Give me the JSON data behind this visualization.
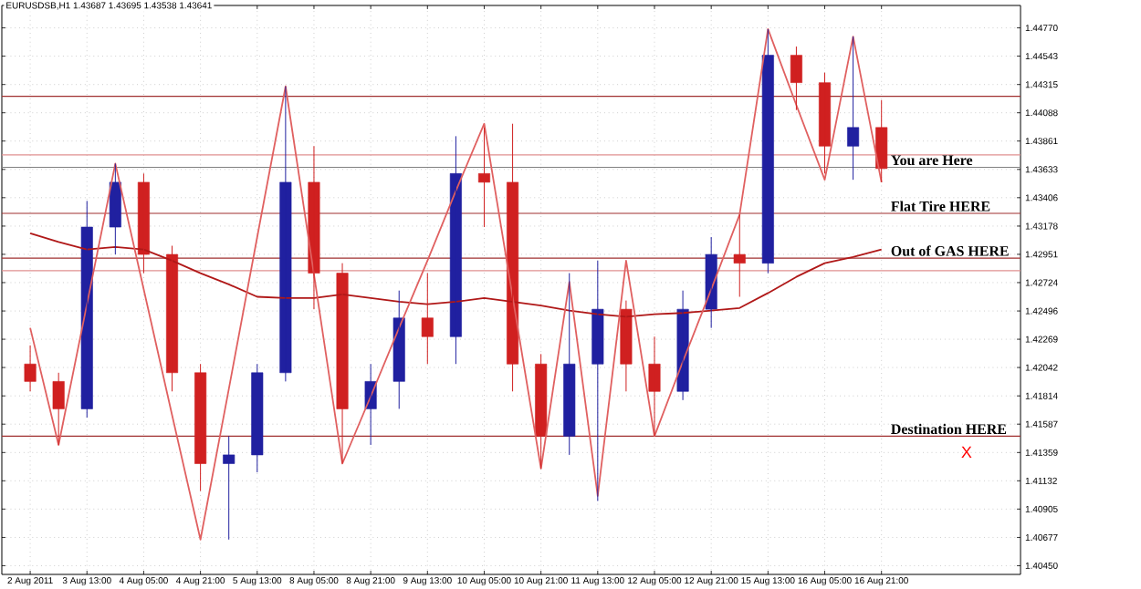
{
  "chart_data": {
    "type": "candlestick",
    "title": "EURUSDSB,H1  1.43687 1.43695 1.43538 1.43641",
    "categories": [
      "2 Aug 2011",
      null,
      "3 Aug 13:00",
      null,
      "4 Aug 05:00",
      null,
      "4 Aug 21:00",
      null,
      "5 Aug 13:00",
      null,
      "8 Aug 05:00",
      null,
      "8 Aug 21:00",
      null,
      "9 Aug 13:00",
      null,
      "10 Aug 05:00",
      null,
      "10 Aug 21:00",
      null,
      "11 Aug 13:00",
      null,
      "12 Aug 05:00",
      null,
      "12 Aug 21:00",
      null,
      "15 Aug 13:00",
      null,
      "16 Aug 05:00",
      null,
      "16 Aug 21:00"
    ],
    "ohlc": [
      [
        1.4207,
        1.4222,
        1.4185,
        1.4193
      ],
      [
        1.4193,
        1.42,
        1.4142,
        1.4171
      ],
      [
        1.4171,
        1.4338,
        1.4164,
        1.4317
      ],
      [
        1.4317,
        1.4368,
        1.4295,
        1.4353
      ],
      [
        1.4353,
        1.436,
        1.428,
        1.4295
      ],
      [
        1.4295,
        1.4302,
        1.4185,
        1.42
      ],
      [
        1.42,
        1.4207,
        1.4105,
        1.4127
      ],
      [
        1.4127,
        1.4149,
        1.4066,
        1.4134
      ],
      [
        1.4134,
        1.4207,
        1.412,
        1.42
      ],
      [
        1.42,
        1.443,
        1.4193,
        1.4353
      ],
      [
        1.4353,
        1.4382,
        1.4251,
        1.428
      ],
      [
        1.428,
        1.4288,
        1.4127,
        1.4171
      ],
      [
        1.4171,
        1.4207,
        1.4142,
        1.4193
      ],
      [
        1.4193,
        1.4266,
        1.4171,
        1.4244
      ],
      [
        1.4244,
        1.428,
        1.4207,
        1.4229
      ],
      [
        1.4229,
        1.439,
        1.4207,
        1.436
      ],
      [
        1.436,
        1.4397,
        1.4317,
        1.4353
      ],
      [
        1.4353,
        1.44,
        1.4185,
        1.4207
      ],
      [
        1.4207,
        1.4215,
        1.4123,
        1.4149
      ],
      [
        1.4149,
        1.428,
        1.4134,
        1.4207
      ],
      [
        1.4207,
        1.429,
        1.4097,
        1.4251
      ],
      [
        1.4251,
        1.4258,
        1.4185,
        1.4207
      ],
      [
        1.4207,
        1.4229,
        1.4149,
        1.4185
      ],
      [
        1.4185,
        1.4266,
        1.4178,
        1.4251
      ],
      [
        1.4251,
        1.4309,
        1.4236,
        1.4295
      ],
      [
        1.4295,
        1.4327,
        1.4261,
        1.4288
      ],
      [
        1.4288,
        1.4476,
        1.428,
        1.4455
      ],
      [
        1.4455,
        1.4462,
        1.4411,
        1.4433
      ],
      [
        1.4433,
        1.4441,
        1.436,
        1.4382
      ],
      [
        1.4382,
        1.447,
        1.4355,
        1.4397
      ],
      [
        1.4397,
        1.4419,
        1.4353,
        1.4364
      ]
    ],
    "colors": [
      "#d02020",
      "#d02020",
      "#2020a0",
      "#2020a0",
      "#d02020",
      "#d02020",
      "#d02020",
      "#2020a0",
      "#2020a0",
      "#2020a0",
      "#d02020",
      "#d02020",
      "#2020a0",
      "#2020a0",
      "#d02020",
      "#2020a0",
      "#d02020",
      "#d02020",
      "#d02020",
      "#2020a0",
      "#2020a0",
      "#d02020",
      "#d02020",
      "#2020a0",
      "#2020a0",
      "#d02020",
      "#2020a0",
      "#d02020",
      "#d02020",
      "#2020a0",
      "#d02020"
    ],
    "series": [
      {
        "type": "line",
        "color": "#b01818",
        "values": [
          1.4312,
          1.4305,
          1.4299,
          1.4301,
          1.4299,
          1.429,
          1.428,
          1.4271,
          1.4261,
          1.426,
          1.426,
          1.4263,
          1.426,
          1.4257,
          1.4255,
          1.4257,
          1.426,
          1.4257,
          1.4254,
          1.425,
          1.4247,
          1.4245,
          1.4247,
          1.4248,
          1.425,
          1.4252,
          1.4264,
          1.4277,
          1.4288,
          1.4293,
          1.4299
        ]
      },
      {
        "type": "line",
        "color": "#e06060",
        "values": [
          1.4236,
          1.4142,
          1.4255,
          1.4368,
          1.4267,
          1.4166,
          1.4066,
          1.4187,
          1.4309,
          1.443,
          1.4279,
          1.4127,
          1.4181,
          1.4236,
          1.429,
          1.4346,
          1.44,
          1.4261,
          1.4123,
          1.4273,
          1.4101,
          1.429,
          1.4149,
          1.4209,
          1.4267,
          1.4327,
          1.4476,
          1.4415,
          1.4355,
          1.447,
          1.4353
        ]
      }
    ],
    "ylim": [
      1.4038,
      1.4495
    ],
    "yticks": [
      {
        "value": 1.4477,
        "label": "1.44770"
      },
      {
        "value": 1.44543,
        "label": "1.44543"
      },
      {
        "value": 1.44315,
        "label": "1.44315"
      },
      {
        "value": 1.44088,
        "label": "1.44088"
      },
      {
        "value": 1.43861,
        "label": "1.43861"
      },
      {
        "value": 1.43633,
        "label": "1.43633"
      },
      {
        "value": 1.43406,
        "label": "1.43406"
      },
      {
        "value": 1.43178,
        "label": "1.43178"
      },
      {
        "value": 1.42951,
        "label": "1.42951"
      },
      {
        "value": 1.42724,
        "label": "1.42724"
      },
      {
        "value": 1.42496,
        "label": "1.42496"
      },
      {
        "value": 1.42269,
        "label": "1.42269"
      },
      {
        "value": 1.42042,
        "label": "1.42042"
      },
      {
        "value": 1.41814,
        "label": "1.41814"
      },
      {
        "value": 1.41587,
        "label": "1.41587"
      },
      {
        "value": 1.41359,
        "label": "1.41359"
      },
      {
        "value": 1.41132,
        "label": "1.41132"
      },
      {
        "value": 1.40905,
        "label": "1.40905"
      },
      {
        "value": 1.40677,
        "label": "1.40677"
      },
      {
        "value": 1.4045,
        "label": "1.40450"
      }
    ],
    "grid": true,
    "ref_lines": [
      {
        "axis": "y",
        "value": 1.4422,
        "color": "#a03030"
      },
      {
        "axis": "y",
        "value": 1.4375,
        "color": "#e09090"
      },
      {
        "axis": "y",
        "value": 1.4365,
        "color": "#808080",
        "label": "You are Here"
      },
      {
        "axis": "y",
        "value": 1.4328,
        "color": "#a03030",
        "label": "Flat Tire HERE"
      },
      {
        "axis": "y",
        "value": 1.4292,
        "color": "#a03030",
        "label": "Out of GAS HERE"
      },
      {
        "axis": "y",
        "value": 1.4282,
        "color": "#e09090"
      },
      {
        "axis": "y",
        "value": 1.4149,
        "color": "#a03030",
        "label": "Destination HERE"
      }
    ],
    "annotations": [
      "X"
    ]
  }
}
